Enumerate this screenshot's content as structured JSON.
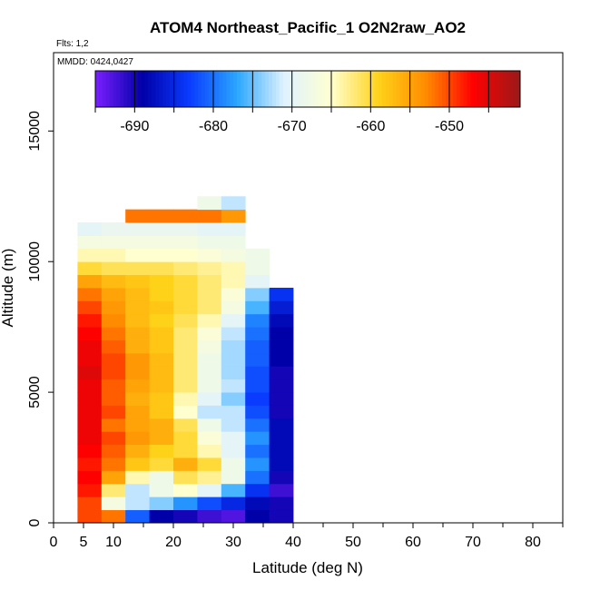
{
  "chart_data": {
    "type": "heatmap",
    "title": "ATOM4 Northeast_Pacific_1 O2N2raw_AO2",
    "flights_label": "Flts: 1,2",
    "mmdd_label": "MMDD: 0424,0427",
    "xlabel": "Latitude (deg N)",
    "ylabel": "Altitude (m)",
    "xlim": [
      0,
      85
    ],
    "ylim": [
      0,
      18000
    ],
    "x_ticks": [
      0,
      5,
      10,
      20,
      30,
      40,
      50,
      60,
      70,
      80
    ],
    "y_ticks": [
      0,
      5000,
      10000,
      15000
    ],
    "colorbar": {
      "range": [
        -695,
        -641
      ],
      "ticks": [
        -690,
        -680,
        -670,
        -660,
        -650
      ],
      "colors": [
        "#7a1fff",
        "#0000a8",
        "#0a3cff",
        "#2aa6ff",
        "#dff2ff",
        "#ffffd0",
        "#ffd21a",
        "#ff8c00",
        "#ff0000",
        "#9a1a1a"
      ]
    },
    "altitude_bins_m": [
      0,
      500,
      1000,
      1500,
      2000,
      2500,
      3000,
      3500,
      4000,
      4500,
      5000,
      5500,
      6000,
      6500,
      7000,
      7500,
      8000,
      8500,
      9000,
      9500,
      10000,
      10500,
      11000,
      11500,
      12000,
      12500
    ],
    "latitude_bins_deg": [
      4,
      8,
      12,
      16,
      20,
      24,
      28,
      32,
      36,
      40
    ],
    "values": [
      [
        -650,
        -652,
        -681,
        -689,
        -690,
        -692,
        -693,
        -689,
        -690
      ],
      [
        -650,
        -667,
        -672,
        -674,
        -678,
        -682,
        -685,
        -688,
        -690
      ],
      [
        -648,
        -662,
        -672,
        -668,
        -665,
        -670,
        -676,
        -684,
        -692
      ],
      [
        -647,
        -655,
        -664,
        -668,
        -661,
        -663,
        -668,
        -680,
        -690
      ],
      [
        -648,
        -652,
        -658,
        -660,
        -656,
        -660,
        -668,
        -678,
        -688
      ],
      [
        -647,
        -651,
        -656,
        -659,
        -660,
        -664,
        -670,
        -680,
        -688
      ],
      [
        -646,
        -650,
        -654,
        -656,
        -660,
        -666,
        -670,
        -678,
        -688
      ],
      [
        -646,
        -652,
        -655,
        -656,
        -661,
        -668,
        -672,
        -680,
        -688
      ],
      [
        -646,
        -650,
        -655,
        -658,
        -665,
        -672,
        -672,
        -682,
        -690
      ],
      [
        -646,
        -651,
        -656,
        -658,
        -664,
        -670,
        -674,
        -683,
        -690
      ],
      [
        -646,
        -651,
        -655,
        -657,
        -662,
        -668,
        -672,
        -682,
        -690
      ],
      [
        -645,
        -650,
        -654,
        -657,
        -662,
        -668,
        -673,
        -682,
        -690
      ],
      [
        -646,
        -650,
        -654,
        -657,
        -662,
        -668,
        -673,
        -681,
        -689
      ],
      [
        -646,
        -651,
        -656,
        -658,
        -662,
        -667,
        -673,
        -681,
        -689
      ],
      [
        -647,
        -652,
        -656,
        -658,
        -662,
        -666,
        -672,
        -680,
        -689
      ],
      [
        -648,
        -653,
        -657,
        -659,
        -661,
        -664,
        -670,
        -679,
        -688
      ],
      [
        -650,
        -654,
        -657,
        -658,
        -660,
        -662,
        -667,
        -676,
        -686
      ],
      [
        -652,
        -655,
        -657,
        -659,
        -660,
        -662,
        -666,
        -674,
        -684
      ],
      [
        -655,
        -657,
        -658,
        -659,
        -660,
        -662,
        -664,
        -670,
        null
      ],
      [
        -660,
        -661,
        -661,
        -661,
        -662,
        -663,
        -664,
        -668,
        null
      ],
      [
        -664,
        -664,
        -665,
        -665,
        -665,
        -666,
        -667,
        -668,
        null
      ],
      [
        -667,
        -667,
        -667,
        -667,
        -667,
        -668,
        -668,
        null,
        null
      ],
      [
        -670,
        -669,
        -669,
        -669,
        -669,
        -670,
        -670,
        null,
        null
      ],
      [
        null,
        null,
        -652,
        -652,
        -652,
        -652,
        -654,
        null,
        null
      ],
      [
        null,
        null,
        null,
        null,
        null,
        -668,
        -672,
        null,
        null
      ]
    ]
  }
}
